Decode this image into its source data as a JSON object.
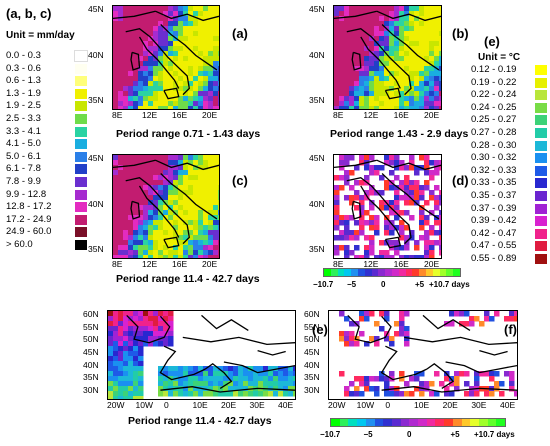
{
  "left_legend": {
    "title": "(a, b, c)",
    "unit": "Unit = mm/day",
    "items": [
      {
        "label": "0.0  -  0.3",
        "color": "#ffffff"
      },
      {
        "label": "0.3  -  0.6",
        "color": "#fffff0"
      },
      {
        "label": "0.6  -  1.3",
        "color": "#ffff7a"
      },
      {
        "label": "1.3  -  1.9",
        "color": "#f0f000"
      },
      {
        "label": "1.9  -  2.5",
        "color": "#c8e600"
      },
      {
        "label": "2.5  -  3.3",
        "color": "#6fdc4a"
      },
      {
        "label": "3.3  -  4.1",
        "color": "#2ad3a3"
      },
      {
        "label": "4.1  -  5.0",
        "color": "#1aaee0"
      },
      {
        "label": "5.0  -  6.1",
        "color": "#2a7fe8"
      },
      {
        "label": "6.1  -  7.8",
        "color": "#2140c8"
      },
      {
        "label": "7.8  -  9.9",
        "color": "#6a2fcf"
      },
      {
        "label": "9.9  -  12.8",
        "color": "#a62bcf"
      },
      {
        "label": "12.8  -  17.2",
        "color": "#e32bc0"
      },
      {
        "label": "17.2  -  24.9",
        "color": "#c21c70"
      },
      {
        "label": "24.9  -  60.0",
        "color": "#7a0f28"
      },
      {
        "label": "> 60.0",
        "color": "#000000"
      }
    ]
  },
  "right_legend": {
    "title": "(e)",
    "unit": "Unit = °C",
    "items": [
      {
        "label": "0.12  -  0.19",
        "color": "#ffff00"
      },
      {
        "label": "0.19  -  0.22",
        "color": "#e6f000"
      },
      {
        "label": "0.22  -  0.24",
        "color": "#b8e63a"
      },
      {
        "label": "0.24  -  0.25",
        "color": "#78dc46"
      },
      {
        "label": "0.25  -  0.27",
        "color": "#3cd278"
      },
      {
        "label": "0.27  -  0.28",
        "color": "#22cca8"
      },
      {
        "label": "0.28  -  0.30",
        "color": "#1cb8d8"
      },
      {
        "label": "0.30  -  0.32",
        "color": "#1a90f0"
      },
      {
        "label": "0.32  -  0.33",
        "color": "#1e5ae8"
      },
      {
        "label": "0.33  -  0.35",
        "color": "#2828d0"
      },
      {
        "label": "0.35  -  0.37",
        "color": "#6a24d0"
      },
      {
        "label": "0.37  -  0.39",
        "color": "#a022d4"
      },
      {
        "label": "0.39  -  0.42",
        "color": "#d822d0"
      },
      {
        "label": "0.42  -  0.47",
        "color": "#f0228c"
      },
      {
        "label": "0.47  -  0.55",
        "color": "#e01c40"
      },
      {
        "label": "0.55  -  0.89",
        "color": "#a01010"
      }
    ]
  },
  "panels": [
    {
      "letter": "(a)",
      "period": "Period range 0.71 - 1.43  days",
      "lat_ticks": [
        "45N",
        "40N",
        "35N"
      ],
      "lon_ticks": [
        "8E",
        "12E",
        "16E",
        "20E"
      ]
    },
    {
      "letter": "(b)",
      "period": "Period range 1.43 - 2.9  days",
      "lat_ticks": [
        "45N",
        "40N",
        "35N"
      ],
      "lon_ticks": [
        "8E",
        "12E",
        "16E",
        "20E"
      ]
    },
    {
      "letter": "(c)",
      "period": "Period range 11.4 - 42.7  days",
      "lat_ticks": [
        "45N",
        "40N",
        "35N"
      ],
      "lon_ticks": [
        "8E",
        "12E",
        "16E",
        "20E"
      ]
    },
    {
      "letter": "(d)",
      "period": "",
      "lat_ticks": [
        "45N",
        "40N",
        "35N"
      ],
      "lon_ticks": [
        "8E",
        "12E",
        "16E",
        "20E"
      ]
    },
    {
      "letter": "(e)",
      "period": "Period range 11.4 - 42.7  days",
      "lat_ticks": [
        "60N",
        "55N",
        "50N",
        "45N",
        "40N",
        "35N",
        "30N"
      ],
      "lon_ticks": [
        "20W",
        "10W",
        "0",
        "10E",
        "20E",
        "30E",
        "40E"
      ]
    },
    {
      "letter": "(f)",
      "period": "",
      "lat_ticks": [
        "60N",
        "55N",
        "50N",
        "45N",
        "40N",
        "35N",
        "30N"
      ],
      "lon_ticks": [
        "20W",
        "10W",
        "0",
        "10E",
        "20E",
        "30E",
        "40E"
      ]
    }
  ],
  "phase_bar_d": {
    "labels": [
      "−10.7",
      "−5",
      "0",
      "+5",
      "+10.7 days"
    ],
    "colors": [
      "#00ff00",
      "#2ef05a",
      "#00e0c0",
      "#00c8f0",
      "#2090f0",
      "#2050e0",
      "#3030d0",
      "#5a2ad0",
      "#8a2ad0",
      "#b02ad0",
      "#d02ac8",
      "#f02aa0",
      "#ff2a60",
      "#ff3a2a",
      "#ff8a2a",
      "#ffc82a",
      "#e6ff2a",
      "#a0ff2a",
      "#60ff2a",
      "#20ff20"
    ]
  },
  "phase_bar_f": {
    "labels": [
      "−10.7",
      "−5",
      "0",
      "+5",
      "+10.7 days"
    ],
    "colors": [
      "#00ff00",
      "#2ef05a",
      "#00e0c0",
      "#00c8f0",
      "#2090f0",
      "#2050e0",
      "#3030d0",
      "#5a2ad0",
      "#8a2ad0",
      "#b02ad0",
      "#d02ac8",
      "#f02aa0",
      "#ff2a60",
      "#ff3a2a",
      "#ff8a2a",
      "#ffc82a",
      "#e6ff2a",
      "#a0ff2a",
      "#60ff2a",
      "#20ff20"
    ]
  }
}
